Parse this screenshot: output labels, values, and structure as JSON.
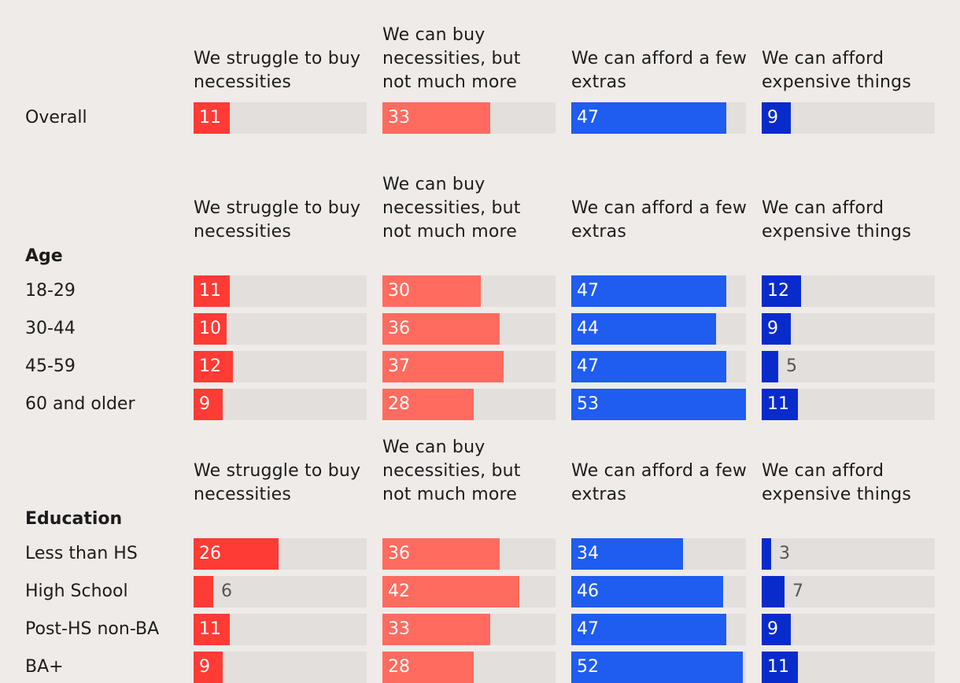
{
  "chart_data": {
    "type": "bar",
    "orientation": "horizontal",
    "columns": [
      "We struggle to buy necessities",
      "We can buy necessities, but not much more",
      "We can afford a few extras",
      "We can afford expensive things"
    ],
    "colors": [
      "#ff3b35",
      "#ff6b5f",
      "#1f5cf0",
      "#0a2bcc"
    ],
    "max_value": 53,
    "sections": [
      {
        "title": "",
        "rows": [
          {
            "label": "Overall",
            "values": [
              11,
              33,
              47,
              9
            ]
          }
        ]
      },
      {
        "title": "Age",
        "rows": [
          {
            "label": "18-29",
            "values": [
              11,
              30,
              47,
              12
            ]
          },
          {
            "label": "30-44",
            "values": [
              10,
              36,
              44,
              9
            ]
          },
          {
            "label": "45-59",
            "values": [
              12,
              37,
              47,
              5
            ]
          },
          {
            "label": "60 and older",
            "values": [
              9,
              28,
              53,
              11
            ]
          }
        ]
      },
      {
        "title": "Education",
        "rows": [
          {
            "label": "Less than HS",
            "values": [
              26,
              36,
              34,
              3
            ]
          },
          {
            "label": "High School",
            "values": [
              6,
              42,
              46,
              7
            ]
          },
          {
            "label": "Post-HS non-BA",
            "values": [
              11,
              33,
              47,
              9
            ]
          },
          {
            "label": "BA+",
            "values": [
              9,
              28,
              52,
              11
            ]
          }
        ]
      }
    ]
  }
}
